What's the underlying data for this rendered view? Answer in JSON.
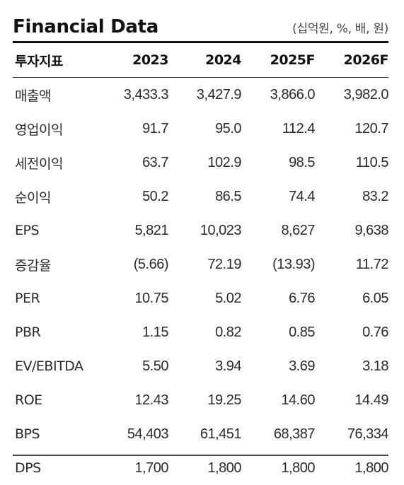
{
  "title": "Financial Data",
  "unit_note": "(십억원, %, 배, 원)",
  "columns": [
    "투자지표",
    "2023",
    "2024",
    "2025F",
    "2026F"
  ],
  "rows": [
    {
      "label": "매출액",
      "values": [
        "3,433.3",
        "3,427.9",
        "3,866.0",
        "3,982.0"
      ]
    },
    {
      "label": "영업이익",
      "values": [
        "91.7",
        "95.0",
        "112.4",
        "120.7"
      ]
    },
    {
      "label": "세전이익",
      "values": [
        "63.7",
        "102.9",
        "98.5",
        "110.5"
      ]
    },
    {
      "label": "순이익",
      "values": [
        "50.2",
        "86.5",
        "74.4",
        "83.2"
      ]
    },
    {
      "label": "EPS",
      "values": [
        "5,821",
        "10,023",
        "8,627",
        "9,638"
      ]
    },
    {
      "label": "증감율",
      "values": [
        "(5.66)",
        "72.19",
        "(13.93)",
        "11.72"
      ]
    },
    {
      "label": "PER",
      "values": [
        "10.75",
        "5.02",
        "6.76",
        "6.05"
      ]
    },
    {
      "label": "PBR",
      "values": [
        "1.15",
        "0.82",
        "0.85",
        "0.76"
      ]
    },
    {
      "label": "EV/EBITDA",
      "values": [
        "5.50",
        "3.94",
        "3.69",
        "3.18"
      ]
    },
    {
      "label": "ROE",
      "values": [
        "12.43",
        "19.25",
        "14.60",
        "14.49"
      ]
    },
    {
      "label": "BPS",
      "values": [
        "54,403",
        "61,451",
        "68,387",
        "76,334"
      ]
    },
    {
      "label": "DPS",
      "values": [
        "1,700",
        "1,800",
        "1,800",
        "1,800"
      ]
    }
  ]
}
